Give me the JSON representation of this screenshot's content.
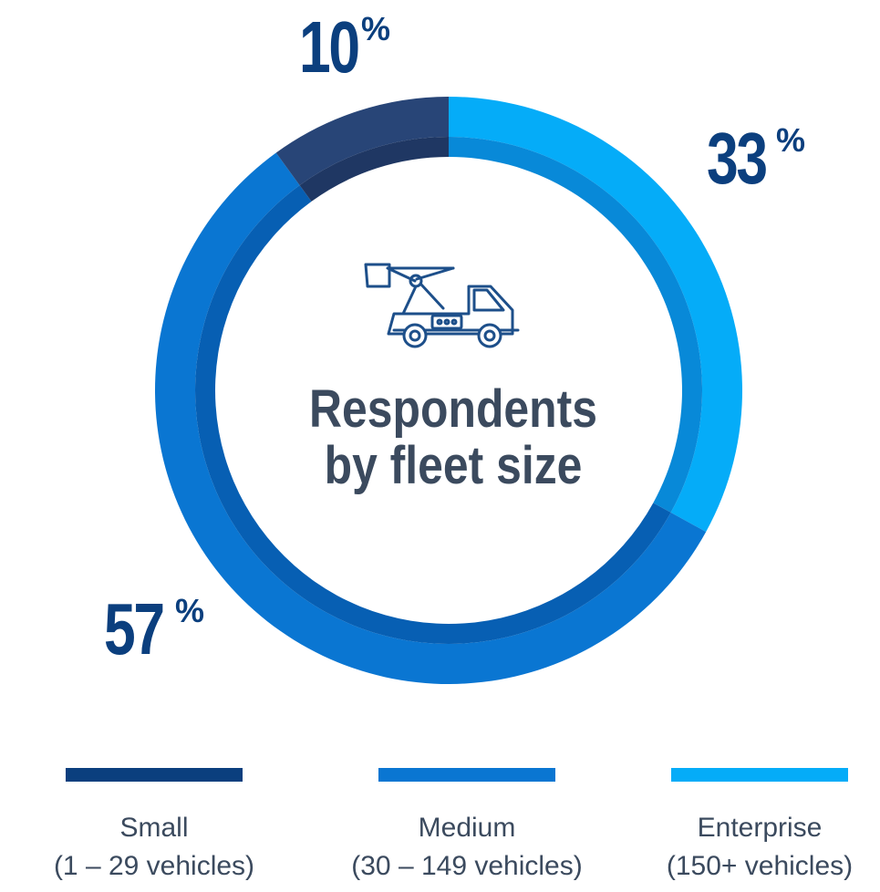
{
  "chart_data": {
    "type": "pie",
    "title": "Respondents by fleet size",
    "categories": [
      "Small (1 – 29 vehicles)",
      "Medium (30 – 149 vehicles)",
      "Enterprise (150+ vehicles)"
    ],
    "values": [
      10,
      57,
      33
    ],
    "unit": "%",
    "legend_position": "bottom",
    "colors": {
      "small": "#284577",
      "medium": "#0a76d2",
      "enterprise": "#05acf8",
      "small_inner": "#1f3763",
      "medium_inner": "#075fb3",
      "enterprise_inner": "#0889d8"
    }
  },
  "labels": {
    "small_number": "10",
    "medium_number": "57",
    "enterprise_number": "33",
    "percent_symbol": "%"
  },
  "legend": [
    {
      "name": "Small",
      "range": "(1 – 29 vehicles)",
      "color": "#0b3f7e"
    },
    {
      "name": "Medium",
      "range": "(30 – 149 vehicles)",
      "color": "#0a76d2"
    },
    {
      "name": "Enterprise",
      "range": "(150+ vehicles)",
      "color": "#05acf8"
    }
  ],
  "icon": "bucket-truck-icon"
}
